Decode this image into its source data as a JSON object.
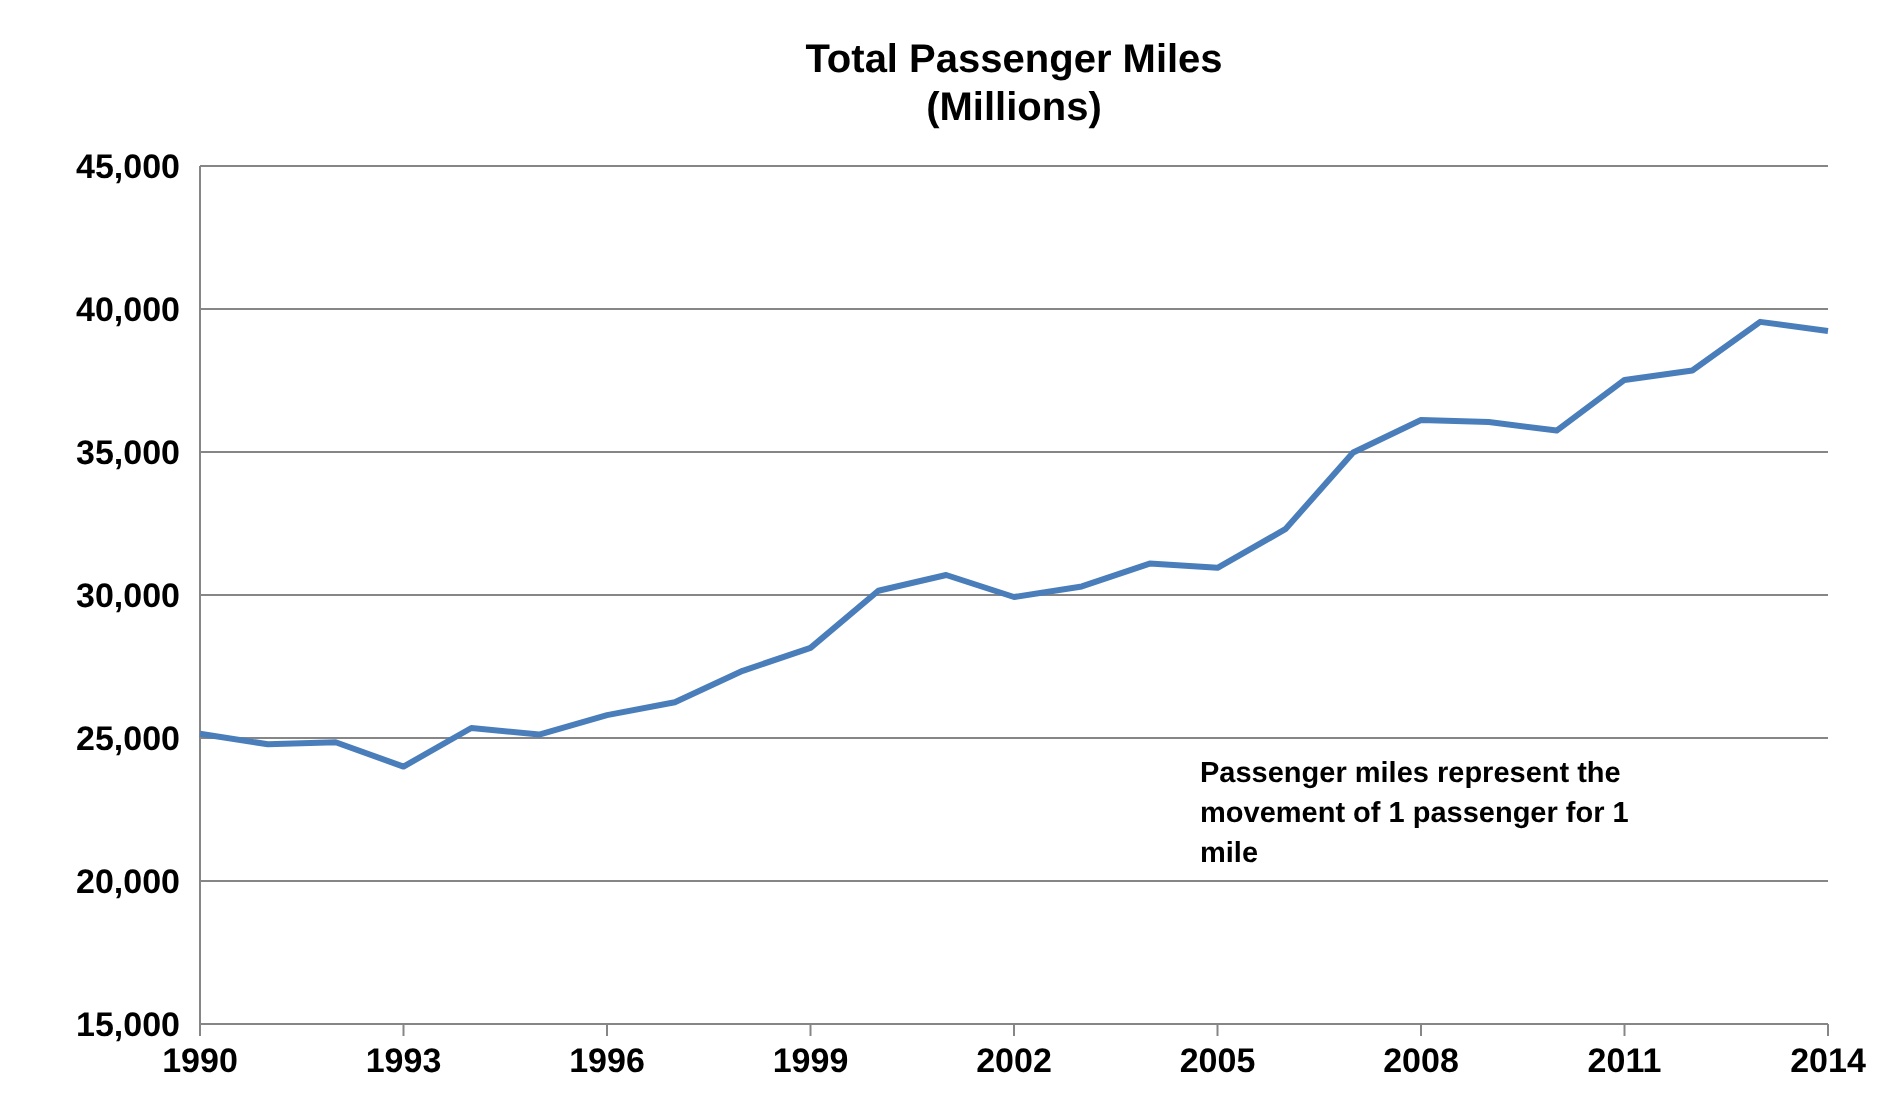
{
  "chart_data": {
    "type": "line",
    "title": "Total Passenger Miles\n(Millions)",
    "x": [
      1990,
      1991,
      1992,
      1993,
      1994,
      1995,
      1996,
      1997,
      1998,
      1999,
      2000,
      2001,
      2002,
      2003,
      2004,
      2005,
      2006,
      2007,
      2008,
      2009,
      2010,
      2011,
      2012,
      2013,
      2014
    ],
    "series": [
      {
        "color": "#4a7ebb",
        "values": [
          25150,
          24780,
          24850,
          24000,
          25350,
          25120,
          25800,
          26250,
          27350,
          28150,
          30150,
          30700,
          29930,
          30300,
          31100,
          30950,
          32300,
          34980,
          36120,
          36050,
          35750,
          37520,
          37850,
          39550,
          39230
        ]
      }
    ],
    "xlim": [
      1990,
      2014
    ],
    "xticks": [
      1990,
      1993,
      1996,
      1999,
      2002,
      2005,
      2008,
      2011,
      2014
    ],
    "ylim": [
      15000,
      45000
    ],
    "yticks": [
      {
        "value": 15000,
        "label": "15,000"
      },
      {
        "value": 20000,
        "label": "20,000"
      },
      {
        "value": 25000,
        "label": "25,000"
      },
      {
        "value": 30000,
        "label": "30,000"
      },
      {
        "value": 35000,
        "label": "35,000"
      },
      {
        "value": 40000,
        "label": "40,000"
      },
      {
        "value": 45000,
        "label": "45,000"
      }
    ],
    "grid": "y",
    "marker": "none",
    "line_style": "solid",
    "annotations": [
      "Passenger miles represent the movement of 1 passenger for 1 mile"
    ]
  }
}
